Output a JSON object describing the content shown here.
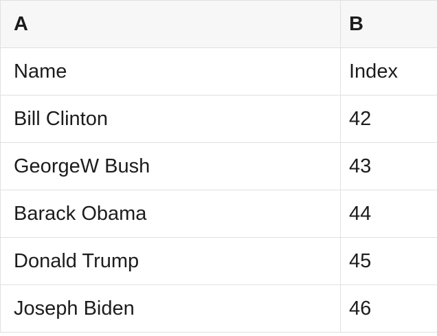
{
  "table": {
    "columns": [
      {
        "label": "A"
      },
      {
        "label": "B"
      }
    ],
    "rows": [
      {
        "a": "Name",
        "b": "Index"
      },
      {
        "a": "Bill Clinton",
        "b": "42"
      },
      {
        "a": "GeorgeW Bush",
        "b": "43"
      },
      {
        "a": "Barack Obama",
        "b": "44"
      },
      {
        "a": "Donald Trump",
        "b": "45"
      },
      {
        "a": "Joseph Biden",
        "b": "46"
      }
    ],
    "colors": {
      "header_bg": "#f7f7f7",
      "row_bg": "#ffffff",
      "border": "#e0e0e0",
      "text": "#1c1c1e"
    }
  }
}
